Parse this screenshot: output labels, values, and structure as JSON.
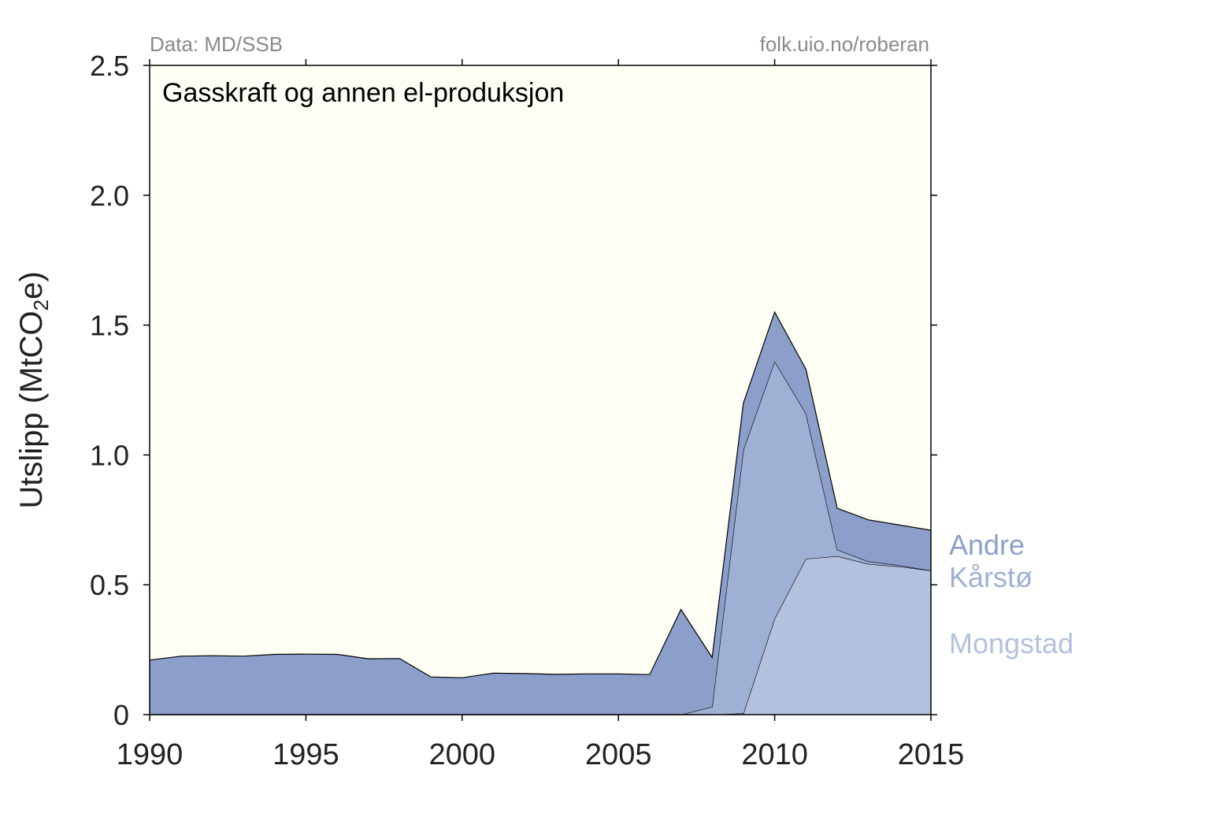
{
  "chart_data": {
    "type": "area",
    "stacked": true,
    "title": "Gasskraft og annen el-produksjon",
    "source_left": "Data: MD/SSB",
    "source_right": "folk.uio.no/roberan",
    "ylabel_main": "Utslipp (MtCO",
    "ylabel_sub": "2",
    "ylabel_end": "e)",
    "xlim": [
      1990,
      2015
    ],
    "ylim": [
      0,
      2.5
    ],
    "xticks": [
      1990,
      1995,
      2000,
      2005,
      2010,
      2015
    ],
    "xtick_labels": [
      "1990",
      "1995",
      "2000",
      "2005",
      "2010",
      "2015"
    ],
    "yticks": [
      0,
      0.5,
      1.0,
      1.5,
      2.0,
      2.5
    ],
    "ytick_labels": [
      "0",
      "0.5",
      "1.0",
      "1.5",
      "2.0",
      "2.5"
    ],
    "x": [
      1990,
      1991,
      1992,
      1993,
      1994,
      1995,
      1996,
      1997,
      1998,
      1999,
      2000,
      2001,
      2002,
      2003,
      2004,
      2005,
      2006,
      2007,
      2008,
      2009,
      2010,
      2011,
      2012,
      2013,
      2014,
      2015
    ],
    "series": [
      {
        "name": "Mongstad",
        "color": "#b3c1de",
        "values": [
          0,
          0,
          0,
          0,
          0,
          0,
          0,
          0,
          0,
          0,
          0,
          0,
          0,
          0,
          0,
          0,
          0,
          0,
          0,
          0.005,
          0.37,
          0.6,
          0.61,
          0.58,
          0.57,
          0.555
        ]
      },
      {
        "name": "Kårstø",
        "color": "#9eb1d5",
        "values": [
          0,
          0,
          0,
          0,
          0,
          0,
          0,
          0,
          0,
          0,
          0,
          0,
          0,
          0,
          0,
          0,
          0,
          0,
          0.03,
          1.015,
          0.99,
          0.56,
          0.025,
          0.01,
          0.005,
          0
        ]
      },
      {
        "name": "Andre",
        "color": "#8c9fcb",
        "values": [
          0.21,
          0.225,
          0.227,
          0.225,
          0.232,
          0.233,
          0.232,
          0.215,
          0.216,
          0.145,
          0.142,
          0.16,
          0.158,
          0.155,
          0.157,
          0.157,
          0.154,
          0.405,
          0.19,
          0.18,
          0.19,
          0.17,
          0.16,
          0.16,
          0.155,
          0.155
        ]
      }
    ],
    "background_color": "#fffef5",
    "legend_placement": "right"
  }
}
